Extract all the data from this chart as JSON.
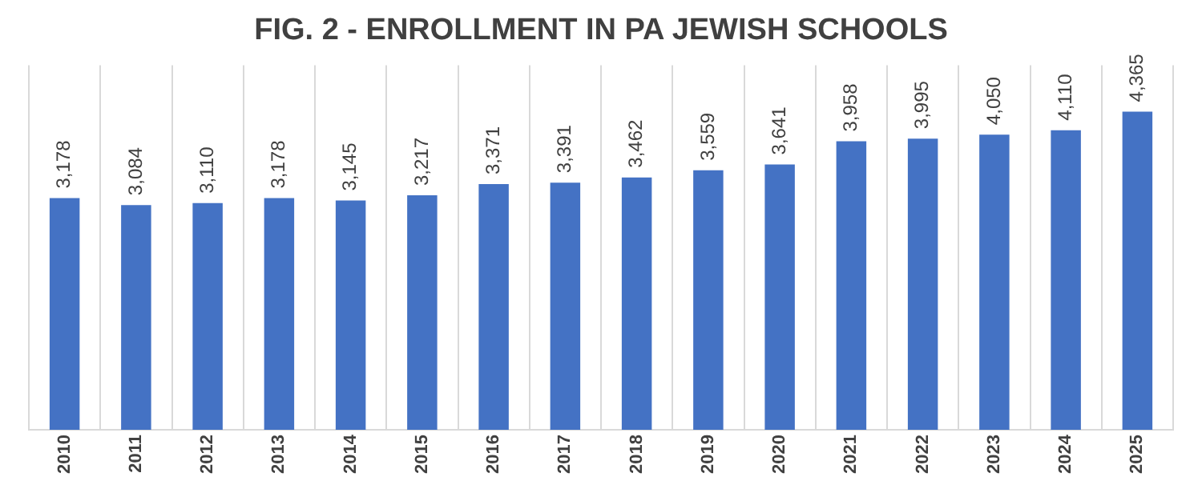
{
  "chart_data": {
    "type": "bar",
    "title": "FIG. 2 - ENROLLMENT IN PA JEWISH SCHOOLS",
    "categories": [
      "2010",
      "2011",
      "2012",
      "2013",
      "2014",
      "2015",
      "2016",
      "2017",
      "2018",
      "2019",
      "2020",
      "2021",
      "2022",
      "2023",
      "2024",
      "2025"
    ],
    "values": [
      3178,
      3084,
      3110,
      3178,
      3145,
      3217,
      3371,
      3391,
      3462,
      3559,
      3641,
      3958,
      3995,
      4050,
      4110,
      4365
    ],
    "value_labels": [
      "3,178",
      "3,084",
      "3,110",
      "3,178",
      "3,145",
      "3,217",
      "3,371",
      "3,391",
      "3,462",
      "3,559",
      "3,641",
      "3,958",
      "3,995",
      "4,050",
      "4,110",
      "4,365"
    ],
    "color": "#4472c4",
    "grid": "x",
    "legend": false
  }
}
